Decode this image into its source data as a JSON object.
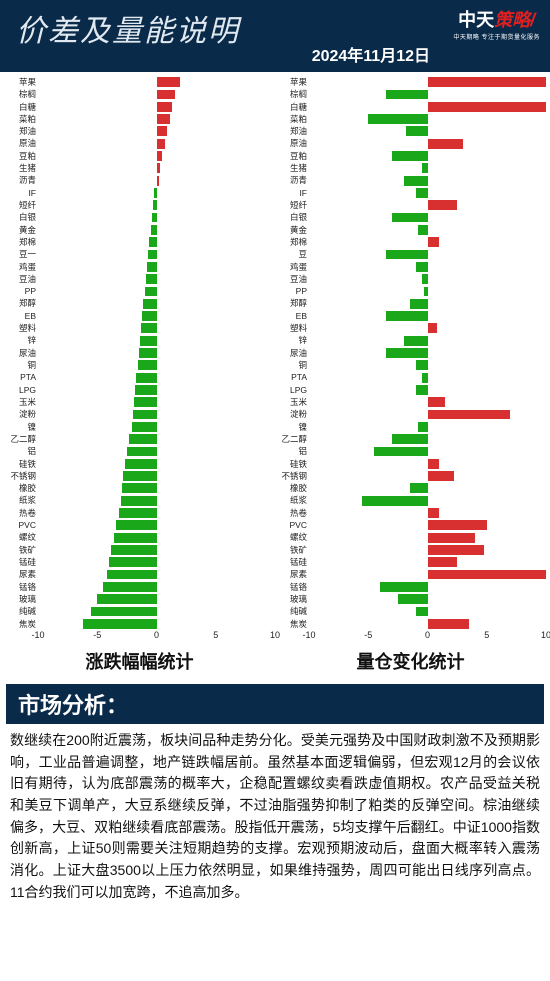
{
  "header": {
    "title": "价差及量能说明",
    "date": "2024年11月12日",
    "logo_main_a": "中天",
    "logo_main_b": "策略",
    "logo_sub": "中天期略  专注于期货量化服务"
  },
  "style": {
    "header_bg": "#0a2a4a",
    "pos_color": "#d83030",
    "neg_color": "#1aa81a",
    "text_color": "#111111",
    "label_fontsize": 8.5,
    "title_fontsize": 18
  },
  "chart_left": {
    "title": "涨跌幅幅统计",
    "xlim": [
      -10,
      10
    ],
    "xticks": [
      -10,
      -5,
      0,
      5,
      10
    ],
    "bars": [
      {
        "label": "苹果",
        "value": 2.0
      },
      {
        "label": "棕榈",
        "value": 1.6
      },
      {
        "label": "白糖",
        "value": 1.3
      },
      {
        "label": "菜粕",
        "value": 1.1
      },
      {
        "label": "郑油",
        "value": 0.9
      },
      {
        "label": "原油",
        "value": 0.7
      },
      {
        "label": "豆粕",
        "value": 0.5
      },
      {
        "label": "生猪",
        "value": 0.3
      },
      {
        "label": "沥青",
        "value": 0.2
      },
      {
        "label": "IF",
        "value": -0.2
      },
      {
        "label": "短纤",
        "value": -0.3
      },
      {
        "label": "白银",
        "value": -0.4
      },
      {
        "label": "黄金",
        "value": -0.5
      },
      {
        "label": "郑棉",
        "value": -0.6
      },
      {
        "label": "豆一",
        "value": -0.7
      },
      {
        "label": "鸡蛋",
        "value": -0.8
      },
      {
        "label": "豆油",
        "value": -0.9
      },
      {
        "label": "PP",
        "value": -1.0
      },
      {
        "label": "郑醇",
        "value": -1.1
      },
      {
        "label": "EB",
        "value": -1.2
      },
      {
        "label": "塑料",
        "value": -1.3
      },
      {
        "label": "锌",
        "value": -1.4
      },
      {
        "label": "尿油",
        "value": -1.5
      },
      {
        "label": "铜",
        "value": -1.6
      },
      {
        "label": "PTA",
        "value": -1.7
      },
      {
        "label": "LPG",
        "value": -1.8
      },
      {
        "label": "玉米",
        "value": -1.9
      },
      {
        "label": "淀粉",
        "value": -2.0
      },
      {
        "label": "镍",
        "value": -2.1
      },
      {
        "label": "乙二醇",
        "value": -2.3
      },
      {
        "label": "铝",
        "value": -2.5
      },
      {
        "label": "硅铁",
        "value": -2.7
      },
      {
        "label": "不锈钢",
        "value": -2.8
      },
      {
        "label": "橡胶",
        "value": -2.9
      },
      {
        "label": "纸浆",
        "value": -3.0
      },
      {
        "label": "热卷",
        "value": -3.2
      },
      {
        "label": "PVC",
        "value": -3.4
      },
      {
        "label": "螺纹",
        "value": -3.6
      },
      {
        "label": "铁矿",
        "value": -3.8
      },
      {
        "label": "锰硅",
        "value": -4.0
      },
      {
        "label": "尿素",
        "value": -4.2
      },
      {
        "label": "锰铬",
        "value": -4.5
      },
      {
        "label": "玻璃",
        "value": -5.0
      },
      {
        "label": "纯碱",
        "value": -5.5
      },
      {
        "label": "焦炭",
        "value": -6.2
      }
    ]
  },
  "chart_right": {
    "title": "量仓变化统计",
    "xlim": [
      -10,
      10
    ],
    "xticks": [
      -10,
      -5,
      0,
      5,
      10
    ],
    "bars": [
      {
        "label": "苹果",
        "value": 10.0
      },
      {
        "label": "棕榈",
        "value": -3.5
      },
      {
        "label": "白糖",
        "value": 10.0
      },
      {
        "label": "菜粕",
        "value": -5.0
      },
      {
        "label": "郑油",
        "value": -1.8
      },
      {
        "label": "原油",
        "value": 3.0
      },
      {
        "label": "豆粕",
        "value": -3.0
      },
      {
        "label": "生猪",
        "value": -0.5
      },
      {
        "label": "沥青",
        "value": -2.0
      },
      {
        "label": "IF",
        "value": -1.0
      },
      {
        "label": "短纤",
        "value": 2.5
      },
      {
        "label": "白银",
        "value": -3.0
      },
      {
        "label": "黄金",
        "value": -0.8
      },
      {
        "label": "郑棉",
        "value": 1.0
      },
      {
        "label": "豆",
        "value": -3.5
      },
      {
        "label": "鸡蛋",
        "value": -1.0
      },
      {
        "label": "豆油",
        "value": -0.5
      },
      {
        "label": "PP",
        "value": -0.3
      },
      {
        "label": "郑醇",
        "value": -1.5
      },
      {
        "label": "EB",
        "value": -3.5
      },
      {
        "label": "塑料",
        "value": 0.8
      },
      {
        "label": "锌",
        "value": -2.0
      },
      {
        "label": "尿油",
        "value": -3.5
      },
      {
        "label": "铜",
        "value": -1.0
      },
      {
        "label": "PTA",
        "value": -0.5
      },
      {
        "label": "LPG",
        "value": -1.0
      },
      {
        "label": "玉米",
        "value": 1.5
      },
      {
        "label": "淀粉",
        "value": 7.0
      },
      {
        "label": "镍",
        "value": -0.8
      },
      {
        "label": "乙二醇",
        "value": -3.0
      },
      {
        "label": "铝",
        "value": -4.5
      },
      {
        "label": "硅铁",
        "value": 1.0
      },
      {
        "label": "不锈钢",
        "value": 2.2
      },
      {
        "label": "橡胶",
        "value": -1.5
      },
      {
        "label": "纸浆",
        "value": -5.5
      },
      {
        "label": "热卷",
        "value": 1.0
      },
      {
        "label": "PVC",
        "value": 5.0
      },
      {
        "label": "螺纹",
        "value": 4.0
      },
      {
        "label": "铁矿",
        "value": 4.8
      },
      {
        "label": "锰硅",
        "value": 2.5
      },
      {
        "label": "尿素",
        "value": 10.0
      },
      {
        "label": "锰铬",
        "value": -4.0
      },
      {
        "label": "玻璃",
        "value": -2.5
      },
      {
        "label": "纯碱",
        "value": -1.0
      },
      {
        "label": "焦炭",
        "value": 3.5
      }
    ]
  },
  "section_header": "市场分析：",
  "analysis_text": "数继续在200附近震荡，板块间品种走势分化。受美元强势及中国财政刺激不及预期影响，工业品普遍调整，地产链跌幅居前。虽然基本面逻辑偏弱，但宏观12月的会议依旧有期待，认为底部震荡的概率大，企稳配置螺纹卖看跌虚值期权。农产品受益关税和美豆下调单产，大豆系继续反弹，不过油脂强势抑制了粕类的反弹空间。棕油继续偏多，大豆、双粕继续看底部震荡。股指低开震荡，5均支撑午后翻红。中证1000指数创新高，上证50则需要关注短期趋势的支撑。宏观预期波动后，盘面大概率转入震荡消化。上证大盘3500以上压力依然明显，如果维持强势，周四可能出日线序列高点。11合约我们可以加宽跨，不追高加多。"
}
